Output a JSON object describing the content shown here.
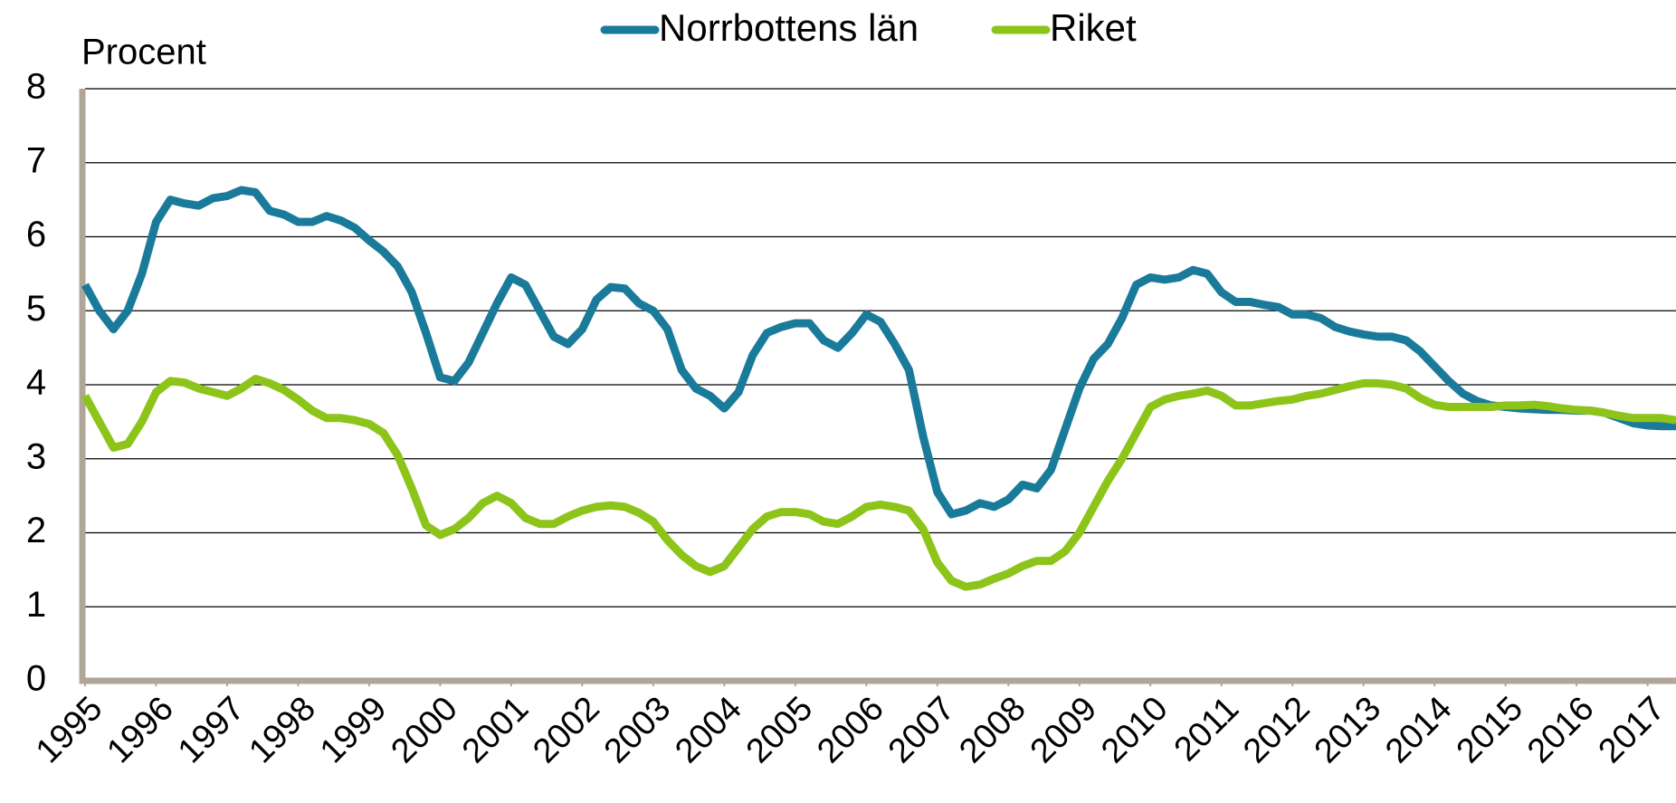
{
  "chart_data": {
    "type": "line",
    "y_label": "Procent",
    "x": [
      1995,
      1995.2,
      1995.4,
      1995.6,
      1995.8,
      1996,
      1996.2,
      1996.4,
      1996.6,
      1996.8,
      1997,
      1997.2,
      1997.4,
      1997.6,
      1997.8,
      1998,
      1998.2,
      1998.4,
      1998.6,
      1998.8,
      1999,
      1999.2,
      1999.4,
      1999.6,
      1999.8,
      2000,
      2000.2,
      2000.4,
      2000.6,
      2000.8,
      2001,
      2001.2,
      2001.4,
      2001.6,
      2001.8,
      2002,
      2002.2,
      2002.4,
      2002.6,
      2002.8,
      2003,
      2003.2,
      2003.4,
      2003.6,
      2003.8,
      2004,
      2004.2,
      2004.4,
      2004.6,
      2004.8,
      2005,
      2005.2,
      2005.4,
      2005.6,
      2005.8,
      2006,
      2006.2,
      2006.4,
      2006.6,
      2006.8,
      2007,
      2007.2,
      2007.4,
      2007.6,
      2007.8,
      2008,
      2008.2,
      2008.4,
      2008.6,
      2008.8,
      2009,
      2009.2,
      2009.4,
      2009.6,
      2009.8,
      2010,
      2010.2,
      2010.4,
      2010.6,
      2010.8,
      2011,
      2011.2,
      2011.4,
      2011.6,
      2011.8,
      2012,
      2012.2,
      2012.4,
      2012.6,
      2012.8,
      2013,
      2013.2,
      2013.4,
      2013.6,
      2013.8,
      2014,
      2014.2,
      2014.4,
      2014.6,
      2014.8,
      2015,
      2015.2,
      2015.4,
      2015.6,
      2015.8,
      2016,
      2016.2,
      2016.4,
      2016.6,
      2016.8,
      2017,
      2017.2,
      2017.4
    ],
    "series": [
      {
        "name": "Norrbottens län",
        "color": "#1a7a9a",
        "values": [
          5.35,
          5.0,
          4.75,
          5.0,
          5.5,
          6.2,
          6.5,
          6.45,
          6.42,
          6.52,
          6.55,
          6.63,
          6.6,
          6.35,
          6.3,
          6.2,
          6.2,
          6.28,
          6.22,
          6.12,
          5.95,
          5.8,
          5.6,
          5.25,
          4.7,
          4.1,
          4.05,
          4.3,
          4.7,
          5.1,
          5.45,
          5.35,
          5.0,
          4.65,
          4.55,
          4.75,
          5.15,
          5.32,
          5.3,
          5.1,
          5.0,
          4.75,
          4.2,
          3.95,
          3.85,
          3.68,
          3.9,
          4.4,
          4.7,
          4.78,
          4.83,
          4.83,
          4.6,
          4.5,
          4.7,
          4.95,
          4.85,
          4.55,
          4.2,
          3.3,
          2.55,
          2.25,
          2.3,
          2.4,
          2.35,
          2.45,
          2.65,
          2.6,
          2.85,
          3.4,
          3.95,
          4.35,
          4.55,
          4.9,
          5.35,
          5.45,
          5.42,
          5.45,
          5.55,
          5.5,
          5.25,
          5.12,
          5.12,
          5.08,
          5.05,
          4.95,
          4.95,
          4.9,
          4.78,
          4.72,
          4.68,
          4.65,
          4.65,
          4.6,
          4.45,
          4.25,
          4.05,
          3.88,
          3.78,
          3.72,
          3.7,
          3.68,
          3.67,
          3.66,
          3.66,
          3.65,
          3.65,
          3.62,
          3.55,
          3.48,
          3.45,
          3.44,
          3.44
        ]
      },
      {
        "name": "Riket",
        "color": "#8cc41a",
        "values": [
          3.85,
          3.5,
          3.15,
          3.2,
          3.5,
          3.9,
          4.05,
          4.03,
          3.95,
          3.9,
          3.85,
          3.95,
          4.08,
          4.02,
          3.93,
          3.8,
          3.65,
          3.55,
          3.55,
          3.52,
          3.47,
          3.35,
          3.05,
          2.6,
          2.1,
          1.97,
          2.05,
          2.2,
          2.4,
          2.5,
          2.4,
          2.2,
          2.12,
          2.12,
          2.22,
          2.3,
          2.35,
          2.37,
          2.35,
          2.27,
          2.15,
          1.9,
          1.7,
          1.55,
          1.47,
          1.55,
          1.8,
          2.05,
          2.22,
          2.28,
          2.28,
          2.25,
          2.15,
          2.12,
          2.22,
          2.35,
          2.38,
          2.35,
          2.3,
          2.05,
          1.6,
          1.35,
          1.27,
          1.3,
          1.38,
          1.45,
          1.55,
          1.62,
          1.62,
          1.75,
          2.0,
          2.35,
          2.7,
          3.0,
          3.35,
          3.7,
          3.8,
          3.85,
          3.88,
          3.92,
          3.85,
          3.72,
          3.72,
          3.75,
          3.78,
          3.8,
          3.85,
          3.88,
          3.93,
          3.98,
          4.02,
          4.02,
          4.0,
          3.95,
          3.82,
          3.73,
          3.7,
          3.7,
          3.7,
          3.7,
          3.72,
          3.72,
          3.73,
          3.71,
          3.68,
          3.66,
          3.65,
          3.62,
          3.58,
          3.55,
          3.55,
          3.55,
          3.52
        ]
      }
    ],
    "xlim": [
      1995,
      2017.4
    ],
    "xticks": [
      1995,
      1996,
      1997,
      1998,
      1999,
      2000,
      2001,
      2002,
      2003,
      2004,
      2005,
      2006,
      2007,
      2008,
      2009,
      2010,
      2011,
      2012,
      2013,
      2014,
      2015,
      2016,
      2017
    ],
    "ylim": [
      0,
      8
    ],
    "yticks": [
      0,
      1,
      2,
      3,
      4,
      5,
      6,
      7,
      8
    ],
    "grid": true,
    "legend": "top"
  }
}
